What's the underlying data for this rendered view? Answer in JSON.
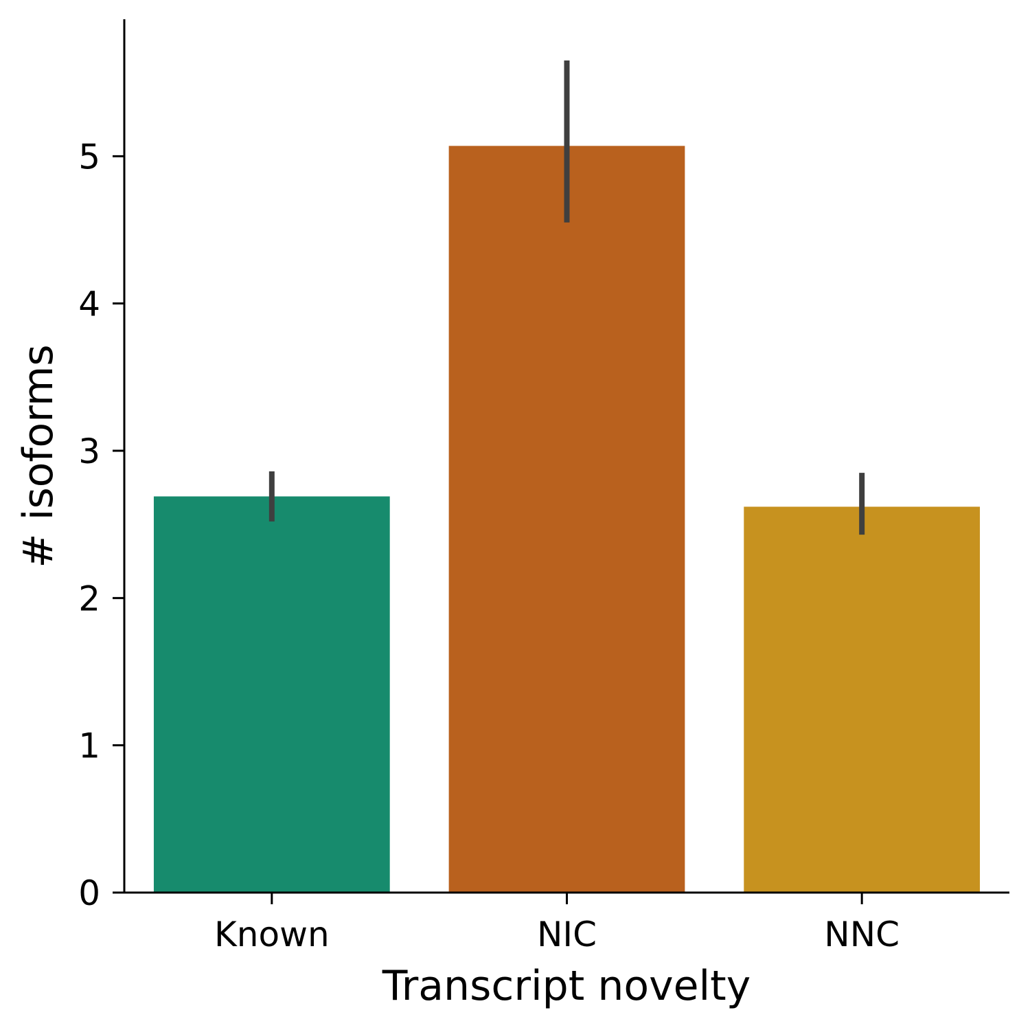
{
  "chart_data": {
    "type": "bar",
    "xlabel": "Transcript novelty",
    "ylabel": "# isoforms",
    "categories": [
      "Known",
      "NIC",
      "NNC"
    ],
    "values": [
      2.69,
      5.07,
      2.62
    ],
    "error_bars": [
      {
        "low": 2.52,
        "high": 2.86
      },
      {
        "low": 4.55,
        "high": 5.65
      },
      {
        "low": 2.43,
        "high": 2.85
      }
    ],
    "colors": [
      "#178B6D",
      "#B9611E",
      "#C7921F"
    ],
    "error_bar_color": "#3f3f3f",
    "ylim": [
      0,
      5.93
    ],
    "yticks": [
      "0",
      "1",
      "2",
      "3",
      "4",
      "5"
    ],
    "grid": false,
    "legend": "none"
  }
}
